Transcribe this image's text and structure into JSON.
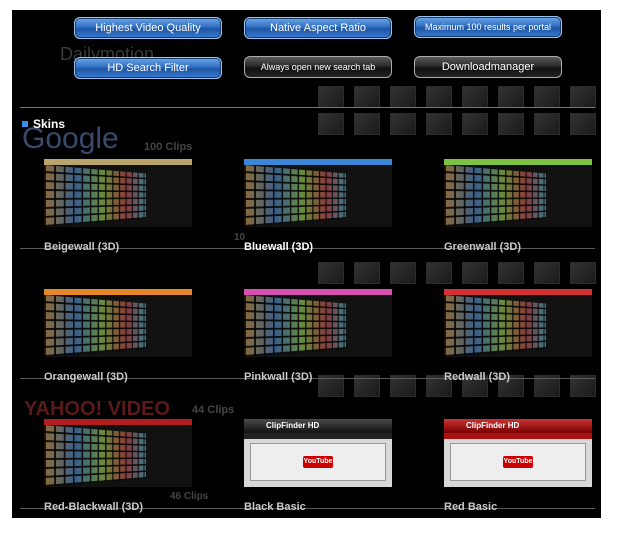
{
  "options": {
    "row1": [
      {
        "label": "Highest Video Quality",
        "style": "blue"
      },
      {
        "label": "Native Aspect Ratio",
        "style": "blue"
      },
      {
        "label": "Maximum 100 results per portal",
        "style": "blue"
      }
    ],
    "row2": [
      {
        "label": "HD Search Filter",
        "style": "blue"
      },
      {
        "label": "Always open new search tab",
        "style": "dark"
      },
      {
        "label": "Downloadmanager",
        "style": "dark"
      }
    ]
  },
  "skins": {
    "heading": "Skins",
    "items": [
      {
        "label": "Beigewall (3D)",
        "accent": "#b9a46b",
        "selected": false
      },
      {
        "label": "Bluewall (3D)",
        "accent": "#3c86d8",
        "selected": true
      },
      {
        "label": "Greenwall (3D)",
        "accent": "#7dc242",
        "selected": false
      },
      {
        "label": "Orangewall (3D)",
        "accent": "#e4862a",
        "selected": false
      },
      {
        "label": "Pinkwall (3D)",
        "accent": "#d44fb0",
        "selected": false
      },
      {
        "label": "Redwall (3D)",
        "accent": "#d43232",
        "selected": false
      },
      {
        "label": "Red-Blackwall (3D)",
        "accent": "#b21e1e",
        "selected": false
      },
      {
        "label": "Black Basic",
        "accent": "#222222",
        "selected": false
      },
      {
        "label": "Red Basic",
        "accent": "#b21e1e",
        "selected": false
      }
    ],
    "basic_logo": "ClipFinder HD",
    "basic_badge": "YouTube"
  },
  "background": {
    "counts": [
      "100 Clips",
      "10",
      "44 Clips",
      "46 Clips"
    ],
    "portals": [
      "Dailymotion",
      "Google",
      "YAHOO! VIDEO"
    ]
  }
}
